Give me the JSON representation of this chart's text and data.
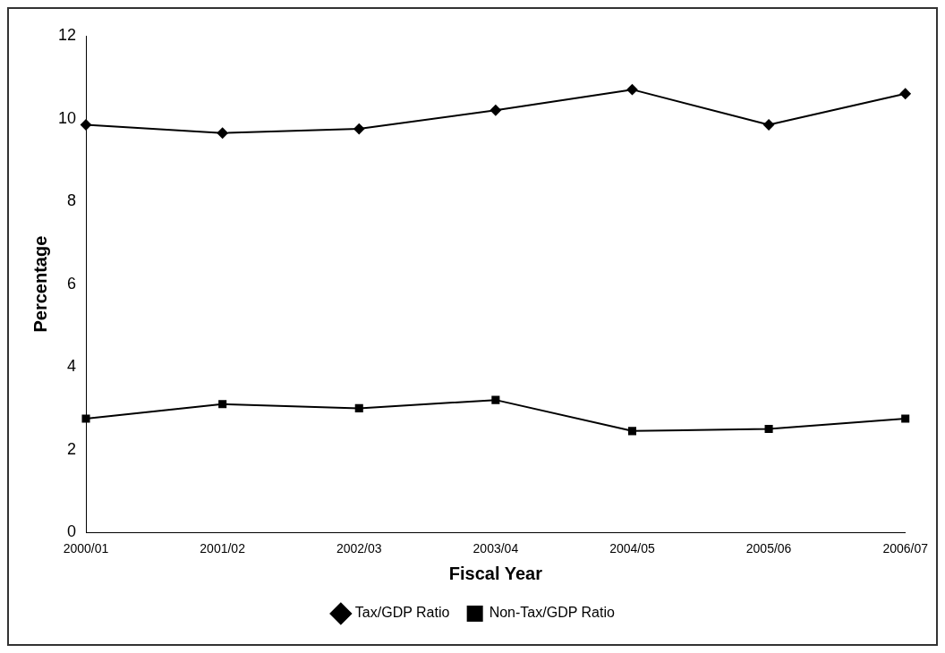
{
  "chart_data": {
    "type": "line",
    "xlabel": "Fiscal Year",
    "ylabel": "Percentage",
    "categories": [
      "2000/01",
      "2001/02",
      "2002/03",
      "2003/04",
      "2004/05",
      "2005/06",
      "2006/07"
    ],
    "series": [
      {
        "name": "Tax/GDP Ratio",
        "color": "#000000",
        "marker": "diamond",
        "values": [
          9.85,
          9.65,
          9.75,
          10.2,
          10.7,
          9.85,
          10.6
        ]
      },
      {
        "name": "Non-Tax/GDP Ratio",
        "color": "#000000",
        "marker": "square",
        "values": [
          2.75,
          3.1,
          3.0,
          3.2,
          2.45,
          2.5,
          2.75
        ]
      }
    ],
    "ylim": [
      0,
      12
    ],
    "yticks": [
      0,
      2,
      4,
      6,
      8,
      10,
      12
    ],
    "grid": false,
    "legend": "bottom",
    "line_style": "solid"
  }
}
